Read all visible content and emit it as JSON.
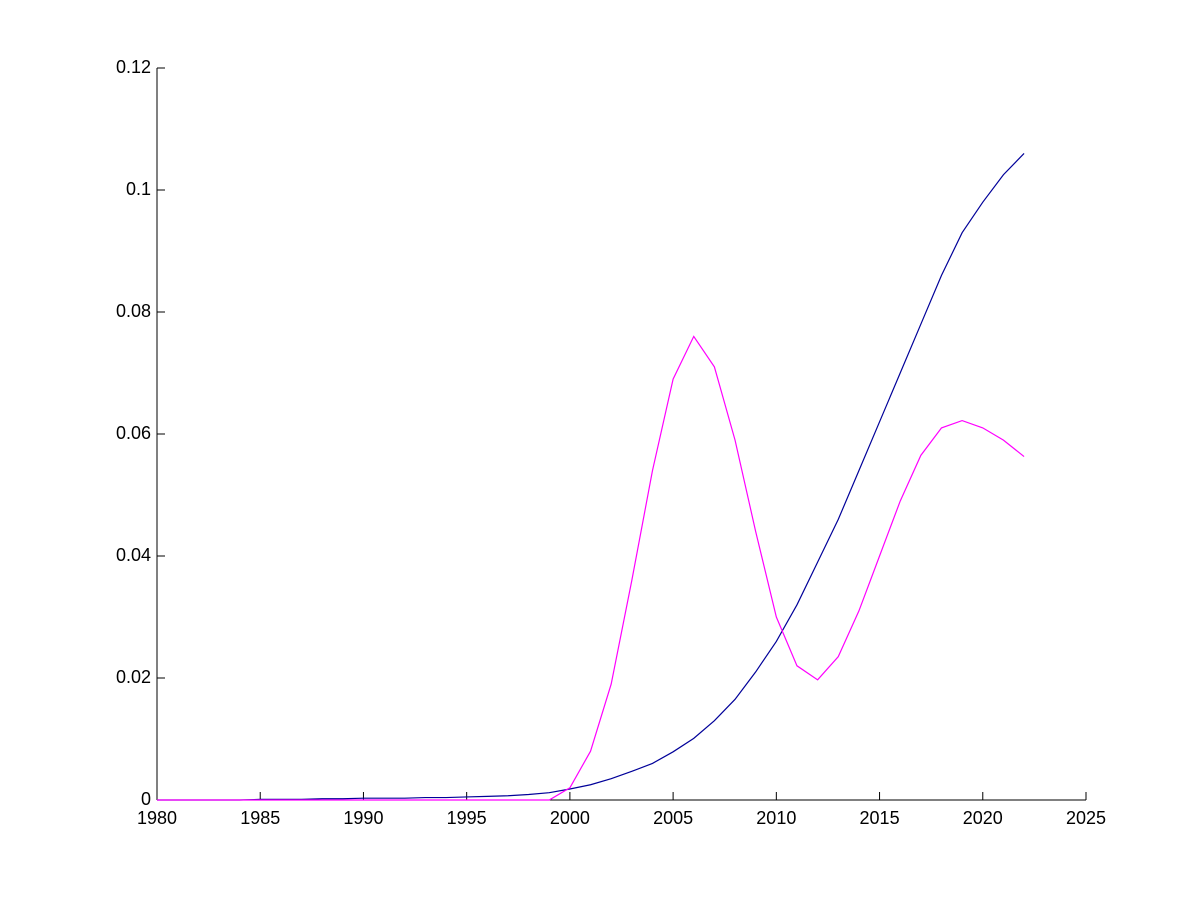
{
  "chart_data": {
    "type": "line",
    "x": [
      1980,
      1981,
      1982,
      1983,
      1984,
      1985,
      1986,
      1987,
      1988,
      1989,
      1990,
      1991,
      1992,
      1993,
      1994,
      1995,
      1996,
      1997,
      1998,
      1999,
      2000,
      2001,
      2002,
      2003,
      2004,
      2005,
      2006,
      2007,
      2008,
      2009,
      2010,
      2011,
      2012,
      2013,
      2014,
      2015,
      2016,
      2017,
      2018,
      2019,
      2020,
      2021,
      2022
    ],
    "series": [
      {
        "color": "#000099",
        "values": [
          0,
          0,
          0,
          0,
          0,
          0.0001,
          0.0001,
          0.0001,
          0.0002,
          0.0002,
          0.0003,
          0.0003,
          0.0003,
          0.0004,
          0.0004,
          0.0005,
          0.0006,
          0.0007,
          0.0009,
          0.0012,
          0.0018,
          0.0025,
          0.0035,
          0.0047,
          0.006,
          0.0079,
          0.0101,
          0.013,
          0.0165,
          0.021,
          0.026,
          0.032,
          0.039,
          0.046,
          0.054,
          0.062,
          0.07,
          0.078,
          0.086,
          0.093,
          0.098,
          0.1025,
          0.106
        ]
      },
      {
        "color": "#ff00ff",
        "values": [
          0,
          0,
          0,
          0,
          0,
          0,
          0,
          0,
          0,
          0,
          0,
          0,
          0,
          0,
          0,
          0,
          0,
          0,
          0,
          0,
          0.002,
          0.008,
          0.019,
          0.036,
          0.054,
          0.069,
          0.076,
          0.071,
          0.059,
          0.044,
          0.03,
          0.022,
          0.0197,
          0.0235,
          0.031,
          0.04,
          0.049,
          0.0565,
          0.061,
          0.0622,
          0.061,
          0.059,
          0.0563
        ]
      }
    ],
    "xlim": [
      1980,
      2025
    ],
    "xticks": [
      1980,
      1985,
      1990,
      1995,
      2000,
      2005,
      2010,
      2015,
      2020,
      2025
    ],
    "ylim": [
      0,
      0.12
    ],
    "yticks": [
      0,
      0.02,
      0.04,
      0.06,
      0.08,
      0.1,
      0.12
    ]
  }
}
